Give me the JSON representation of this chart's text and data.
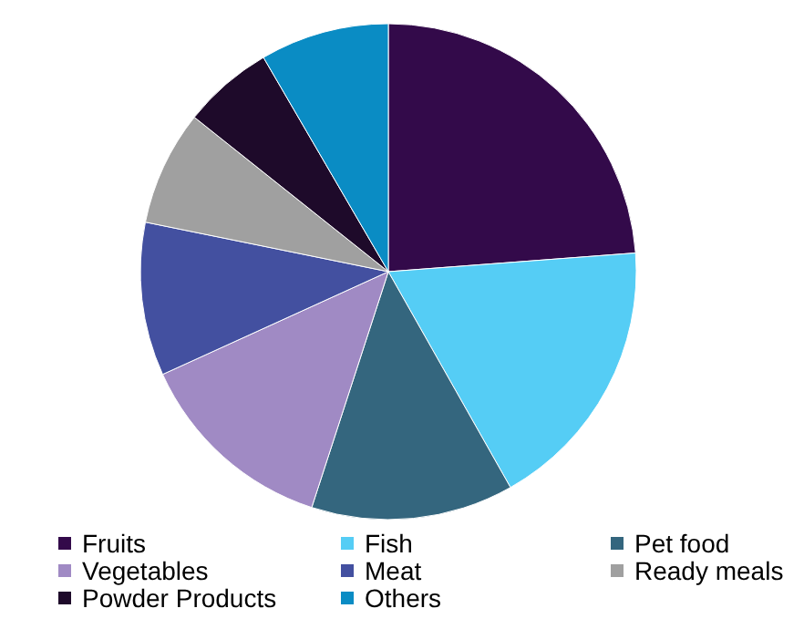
{
  "chart_data": {
    "type": "pie",
    "categories": [
      "Fruits",
      "Fish",
      "Pet food",
      "Vegetables",
      "Meat",
      "Ready meals",
      "Powder Products",
      "Others"
    ],
    "values": [
      23.8,
      18,
      13.2,
      13.2,
      10,
      7.5,
      5.9,
      8.4
    ],
    "colors": [
      "#330a4a",
      "#55cdf5",
      "#34667e",
      "#a08ac4",
      "#4350a0",
      "#a0a0a0",
      "#1e0a2a",
      "#0a8cc4"
    ],
    "legend": "bottom"
  }
}
